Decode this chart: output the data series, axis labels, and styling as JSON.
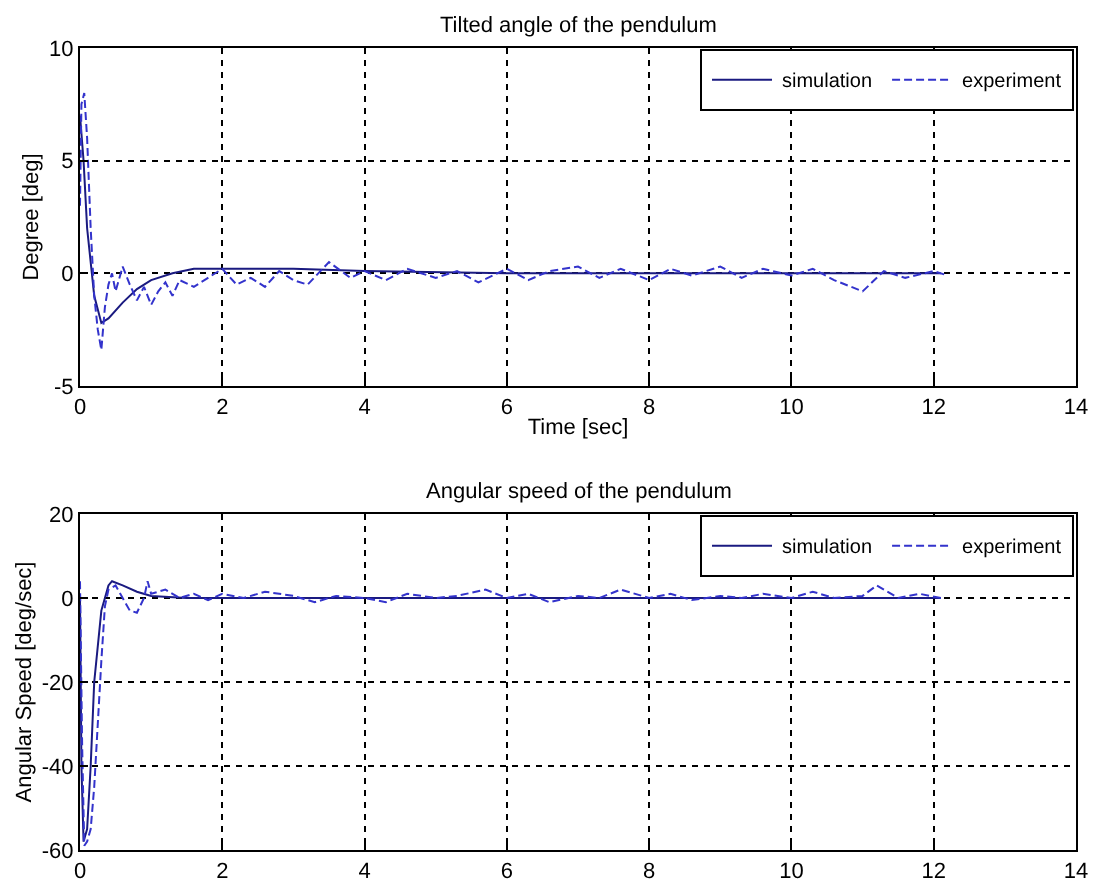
{
  "chart_data": [
    {
      "type": "line",
      "title": "Tilted angle of the pendulum",
      "xlabel": "Time [sec]",
      "ylabel": "Degree [deg]",
      "xlim": [
        0,
        14
      ],
      "xticks": [
        0,
        2,
        4,
        6,
        8,
        10,
        12,
        14
      ],
      "ylim": [
        -5,
        10
      ],
      "yticks": [
        -5,
        0,
        5,
        10
      ],
      "grid": true,
      "legend": "top right",
      "series": [
        {
          "name": "simulation",
          "color": "#1a1a80",
          "line_style": "solid",
          "x": [
            0,
            0.05,
            0.1,
            0.2,
            0.3,
            0.4,
            0.6,
            0.8,
            1.0,
            1.3,
            1.6,
            2,
            3,
            4,
            6,
            12.1
          ],
          "values": [
            7,
            5,
            2,
            -1,
            -2.2,
            -2,
            -1.3,
            -0.7,
            -0.3,
            0,
            0.2,
            0.2,
            0.2,
            0.1,
            0,
            0
          ]
        },
        {
          "name": "experiment",
          "color": "#3333cc",
          "line_style": "dashed",
          "x": [
            0,
            0.02,
            0.06,
            0.1,
            0.15,
            0.2,
            0.25,
            0.3,
            0.35,
            0.4,
            0.45,
            0.5,
            0.6,
            0.7,
            0.8,
            0.9,
            1.0,
            1.1,
            1.2,
            1.3,
            1.4,
            1.6,
            1.8,
            2.0,
            2.2,
            2.4,
            2.6,
            2.8,
            3.0,
            3.2,
            3.5,
            3.8,
            4.0,
            4.3,
            4.6,
            5.0,
            5.3,
            5.6,
            6.0,
            6.3,
            6.6,
            7.0,
            7.3,
            7.6,
            8.0,
            8.3,
            8.6,
            9.0,
            9.3,
            9.6,
            10.0,
            10.3,
            10.6,
            11.0,
            11.3,
            11.6,
            12.0,
            12.2
          ],
          "values": [
            3,
            7.5,
            8,
            6,
            2,
            -1,
            -2.5,
            -3.4,
            -1.5,
            -0.5,
            0,
            -0.8,
            0.3,
            -0.5,
            -1.2,
            -0.6,
            -1.4,
            -0.8,
            -0.4,
            -1,
            -0.3,
            -0.6,
            -0.2,
            0.2,
            -0.5,
            -0.2,
            -0.6,
            0.1,
            -0.3,
            -0.5,
            0.5,
            -0.2,
            0.1,
            -0.3,
            0.2,
            -0.2,
            0.1,
            -0.4,
            0.2,
            -0.3,
            0.1,
            0.3,
            -0.2,
            0.2,
            -0.3,
            0.2,
            -0.1,
            0.3,
            -0.2,
            0.2,
            -0.1,
            0.2,
            -0.3,
            -0.8,
            0.1,
            -0.2,
            0.1,
            -0.1
          ]
        }
      ]
    },
    {
      "type": "line",
      "title": "Angular speed of the pendulum",
      "ylabel": "Angular Speed [deg/sec]",
      "xlim": [
        0,
        14
      ],
      "xticks": [
        0,
        2,
        4,
        6,
        8,
        10,
        12,
        14
      ],
      "ylim": [
        -60,
        20
      ],
      "yticks": [
        -60,
        -40,
        -20,
        0,
        20
      ],
      "grid": true,
      "legend": "top right",
      "series": [
        {
          "name": "simulation",
          "color": "#1a1a80",
          "line_style": "solid",
          "x": [
            0,
            0.02,
            0.05,
            0.1,
            0.15,
            0.2,
            0.3,
            0.4,
            0.45,
            0.6,
            0.8,
            1.0,
            1.5,
            12.1
          ],
          "values": [
            0,
            -40,
            -58,
            -55,
            -40,
            -20,
            -3,
            3,
            4,
            3,
            1.5,
            0.5,
            0,
            0
          ]
        },
        {
          "name": "experiment",
          "color": "#3333cc",
          "line_style": "dashed",
          "x": [
            0,
            0.03,
            0.06,
            0.1,
            0.15,
            0.2,
            0.25,
            0.3,
            0.35,
            0.4,
            0.5,
            0.6,
            0.7,
            0.8,
            0.9,
            0.95,
            1.0,
            1.2,
            1.4,
            1.6,
            1.8,
            2.0,
            2.3,
            2.6,
            3.0,
            3.3,
            3.6,
            4.0,
            4.3,
            4.6,
            5.0,
            5.3,
            5.7,
            6.0,
            6.3,
            6.6,
            7.0,
            7.3,
            7.6,
            8.0,
            8.3,
            8.6,
            9.0,
            9.3,
            9.6,
            10.0,
            10.3,
            10.6,
            11.0,
            11.2,
            11.5,
            11.8,
            12.1
          ],
          "values": [
            4,
            -35,
            -59,
            -58,
            -55,
            -45,
            -30,
            -15,
            -2,
            2,
            3,
            0,
            -3,
            -3.5,
            0,
            4,
            1,
            2,
            0,
            1,
            -0.5,
            1,
            0,
            1.5,
            0.5,
            -1,
            0.5,
            0,
            -1,
            1,
            0,
            0.5,
            2,
            0,
            1,
            -1,
            0.5,
            0,
            2,
            0,
            1,
            -0.5,
            0.5,
            0,
            1,
            0,
            1.5,
            0,
            0.5,
            3,
            0,
            1,
            0
          ]
        }
      ]
    }
  ]
}
